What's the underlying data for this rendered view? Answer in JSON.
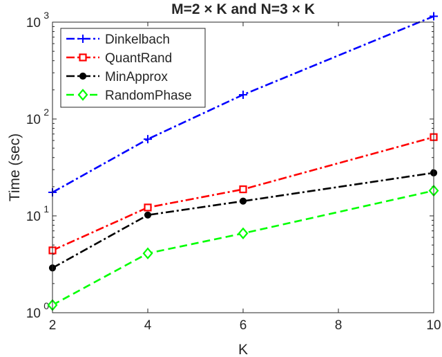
{
  "chart_data": {
    "type": "line",
    "title": "M=2 × K and N=3 × K",
    "xlabel": "K",
    "ylabel": "Time (sec)",
    "xlim": [
      2,
      10
    ],
    "ylim": [
      1,
      1000
    ],
    "yscale": "log",
    "grid": false,
    "legend_position": "top-left",
    "x": [
      2,
      4,
      6,
      10
    ],
    "xticks": [
      "2",
      "4",
      "6",
      "8",
      "10"
    ],
    "yticks": [
      {
        "base": "10",
        "exp": "0"
      },
      {
        "base": "10",
        "exp": "1"
      },
      {
        "base": "10",
        "exp": "2"
      },
      {
        "base": "10",
        "exp": "3"
      }
    ],
    "series": [
      {
        "name": "Dinkelbach",
        "values": [
          17.5,
          62,
          178,
          1150
        ],
        "color": "#0000ff",
        "marker": "plus",
        "dash": "dashdot"
      },
      {
        "name": "QuantRand",
        "values": [
          4.4,
          12.2,
          18.8,
          65
        ],
        "color": "#ff0000",
        "marker": "square",
        "dash": "dashdot"
      },
      {
        "name": "MinApprox",
        "values": [
          2.9,
          10.2,
          14.2,
          27.8
        ],
        "color": "#000000",
        "marker": "circle",
        "dash": "dashdot"
      },
      {
        "name": "RandomPhase",
        "values": [
          1.2,
          4.1,
          6.6,
          18.2
        ],
        "color": "#00ff00",
        "marker": "diamond",
        "dash": "dashed"
      }
    ]
  }
}
